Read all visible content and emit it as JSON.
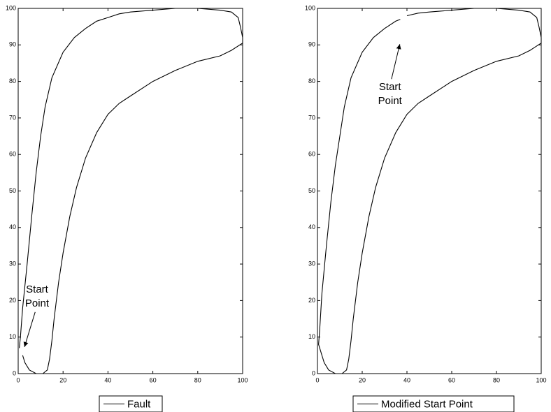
{
  "chart_data": [
    {
      "type": "line",
      "x": [
        2,
        3,
        5,
        8,
        11,
        13,
        14,
        15,
        16,
        18,
        20,
        23,
        26,
        30,
        35,
        40,
        45,
        50,
        60,
        70,
        80,
        90,
        95,
        100,
        100,
        99,
        98,
        95,
        90,
        80,
        70,
        60,
        50,
        45,
        40,
        35,
        30,
        25,
        20,
        15,
        12,
        10,
        8,
        6,
        4,
        2,
        1,
        0.5
      ],
      "series": [
        {
          "name": "Fault",
          "color": "#000000",
          "values": [
            5,
            3,
            1,
            0,
            0,
            1,
            4,
            9,
            15,
            25,
            33,
            43,
            51,
            59,
            66,
            71,
            74,
            76,
            80,
            83,
            85.5,
            87,
            88.5,
            90.5,
            92,
            95,
            97.5,
            99,
            99.5,
            100,
            100,
            99.5,
            99,
            98.5,
            97.5,
            96.5,
            94.5,
            92,
            88,
            81,
            73,
            65,
            55,
            43,
            30,
            18,
            10,
            7
          ]
        }
      ],
      "xlim": [
        0,
        100
      ],
      "ylim": [
        0,
        100
      ],
      "xticks": [
        0,
        20,
        40,
        60,
        80,
        100
      ],
      "yticks": [
        0,
        10,
        20,
        30,
        40,
        50,
        60,
        70,
        80,
        90,
        100
      ],
      "annotations": [
        {
          "lines": [
            "Start",
            "Point"
          ],
          "point": [
            2.8,
            7.3
          ]
        }
      ]
    },
    {
      "type": "line",
      "x": [
        40,
        45,
        50,
        60,
        70,
        80,
        90,
        95,
        98,
        99,
        100,
        100,
        95,
        90,
        80,
        70,
        60,
        50,
        45,
        40,
        35,
        30,
        26,
        23,
        20,
        18,
        16,
        15,
        14,
        13,
        11,
        8,
        5,
        3,
        2,
        0.5,
        1,
        2,
        4,
        6,
        8,
        10,
        12,
        15,
        20,
        25,
        30,
        35,
        37
      ],
      "series": [
        {
          "name": "Modified Start Point",
          "color": "#000000",
          "values": [
            98,
            98.7,
            99,
            99.5,
            100,
            100,
            99.5,
            99,
            97.5,
            95,
            92,
            90.5,
            88.5,
            87,
            85.5,
            83,
            80,
            76,
            74,
            71,
            66,
            59,
            51,
            43,
            33,
            25,
            15,
            9,
            4,
            1,
            0,
            0,
            1,
            3,
            5,
            8,
            12,
            22,
            35,
            47,
            57,
            65,
            73,
            81,
            88,
            92,
            94.5,
            96.5,
            97
          ]
        }
      ],
      "xlim": [
        0,
        100
      ],
      "ylim": [
        0,
        100
      ],
      "xticks": [
        0,
        20,
        40,
        60,
        80,
        100
      ],
      "yticks": [
        0,
        10,
        20,
        30,
        40,
        50,
        60,
        70,
        80,
        90,
        100
      ],
      "annotations": [
        {
          "lines": [
            "Start",
            "Point"
          ],
          "point": [
            36.8,
            90.2
          ]
        }
      ]
    }
  ]
}
